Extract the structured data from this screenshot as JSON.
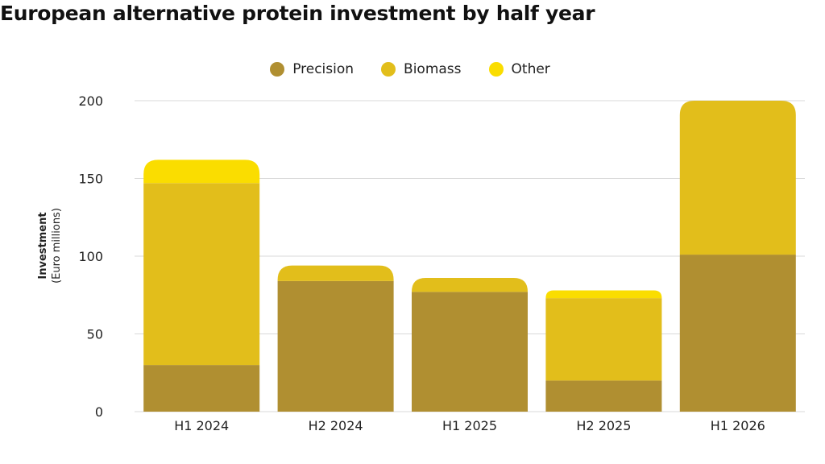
{
  "title": "European alternative protein investment by half year",
  "chart_data": {
    "type": "bar",
    "stacked": true,
    "title": "European alternative protein investment by half year",
    "ylabel": "Investment",
    "ylabel_unit": "(Euro millions)",
    "xlabel": "",
    "categories": [
      "H1 2024",
      "H2 2024",
      "H1 2025",
      "H2 2025",
      "H1 2026"
    ],
    "series": [
      {
        "name": "Precision",
        "color": "#b08f31",
        "values": [
          30,
          84,
          77,
          20,
          101
        ]
      },
      {
        "name": "Biomass",
        "color": "#e2be1b",
        "values": [
          117,
          10,
          9,
          53,
          99
        ]
      },
      {
        "name": "Other",
        "color": "#fadd00",
        "values": [
          15,
          0,
          0,
          5,
          0
        ]
      }
    ],
    "ylim": [
      0,
      200
    ],
    "yticks": [
      0,
      50,
      100,
      150,
      200
    ],
    "grid": true,
    "legend_position": "top-center"
  }
}
